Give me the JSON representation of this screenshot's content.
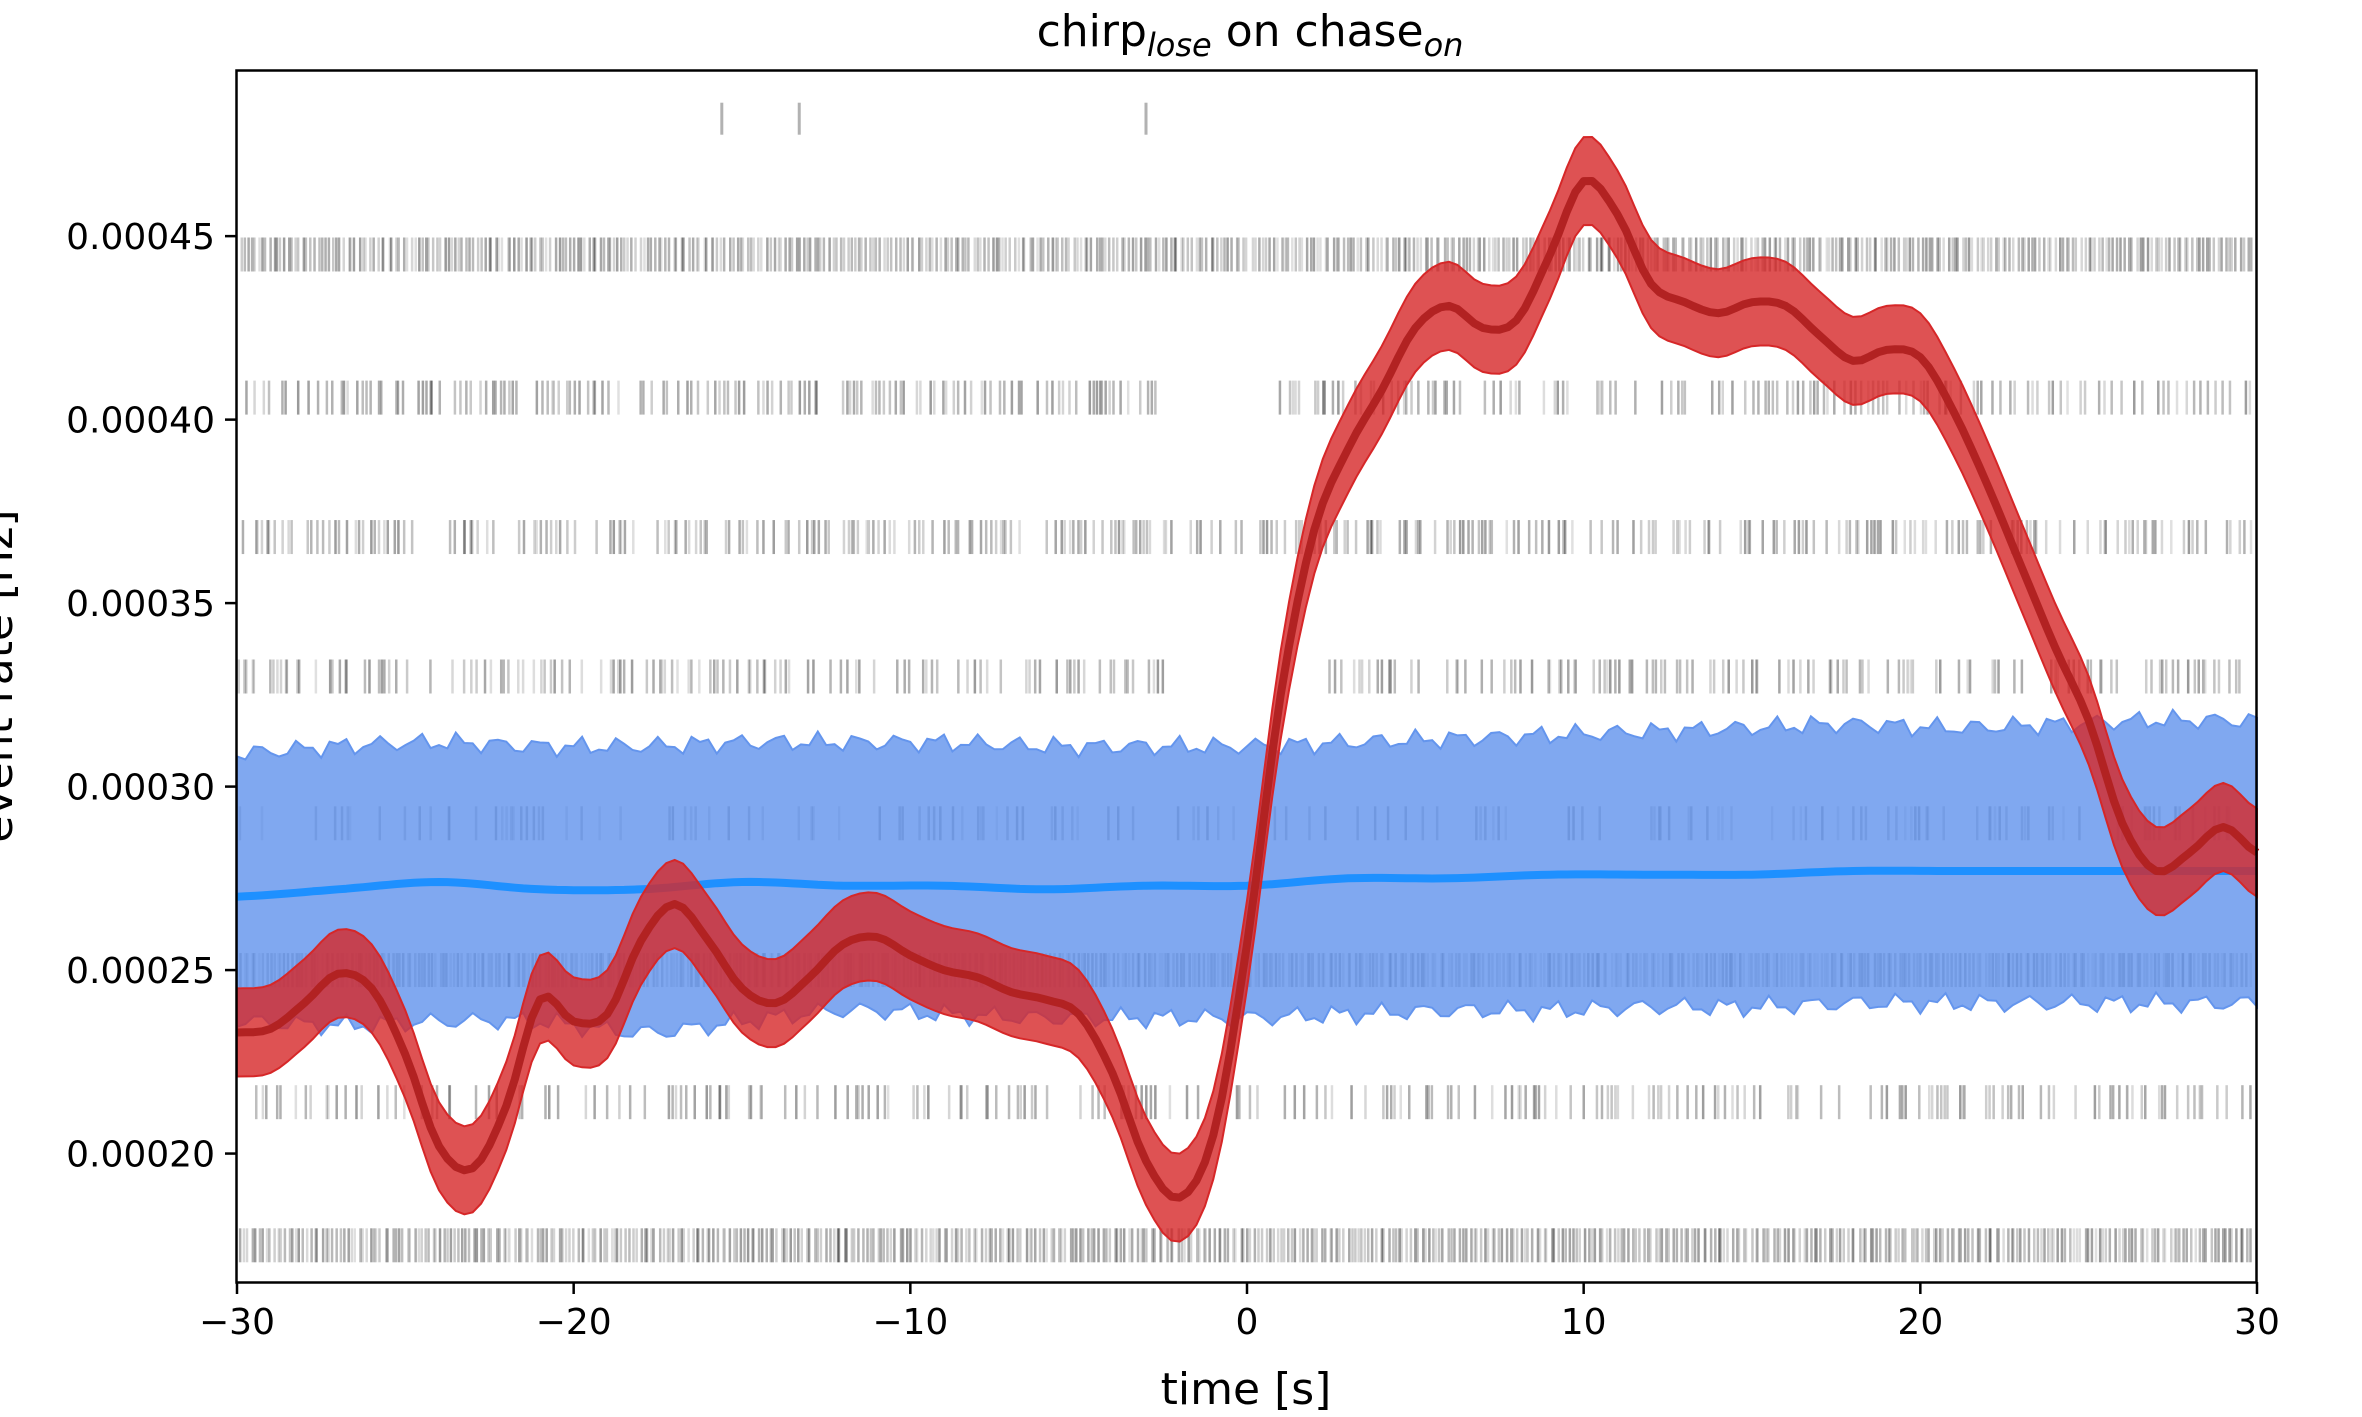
{
  "chart_data": {
    "type": "line",
    "title": {
      "base1": "chirp",
      "sub1": "lose",
      "mid": " on chase",
      "sub2": "on"
    },
    "xlabel": "time [s]",
    "ylabel": "event rate [Hz]",
    "xlim": [
      -30,
      30
    ],
    "ylim": [
      0.000165,
      0.000495
    ],
    "xticks": [
      -30,
      -20,
      -10,
      0,
      10,
      20,
      30
    ],
    "xtick_labels": [
      "−30",
      "−20",
      "−10",
      "0",
      "10",
      "20",
      "30"
    ],
    "yticks": [
      0.0002,
      0.00025,
      0.0003,
      0.00035,
      0.0004,
      0.00045
    ],
    "ytick_labels": [
      "0.00020",
      "0.00025",
      "0.00030",
      "0.00035",
      "0.00040",
      "0.00045"
    ],
    "grid": false,
    "legend": "none",
    "colors": {
      "signal_line": "#b22222",
      "signal_band": "#d62728",
      "shuffle_line": "#1e90ff",
      "shuffle_band": "#6495ed",
      "event_ticks": "#000000"
    },
    "series": [
      {
        "role": "observed rate (median) with confidence band",
        "x": [
          -30,
          -29,
          -28,
          -27,
          -26,
          -25,
          -24,
          -23,
          -22,
          -21,
          -20,
          -19,
          -18,
          -17,
          -16,
          -15,
          -14,
          -13,
          -12,
          -11,
          -10,
          -9,
          -8,
          -7,
          -6,
          -5,
          -4,
          -3,
          -2,
          -1,
          0,
          1,
          2,
          3,
          4,
          5,
          6,
          7,
          8,
          9,
          10,
          11,
          12,
          13,
          14,
          15,
          16,
          17,
          18,
          19,
          20,
          21,
          22,
          23,
          24,
          25,
          26,
          27,
          28,
          29,
          30
        ],
        "y": [
          0.000233,
          0.000234,
          0.000241,
          0.000249,
          0.000245,
          0.000227,
          0.000202,
          0.000196,
          0.000213,
          0.000242,
          0.000236,
          0.000238,
          0.000258,
          0.000268,
          0.000258,
          0.000245,
          0.000241,
          0.000248,
          0.000257,
          0.000259,
          0.000254,
          0.00025,
          0.000248,
          0.000244,
          0.000242,
          0.000238,
          0.000222,
          0.000198,
          0.000188,
          0.000205,
          0.000257,
          0.000325,
          0.00037,
          0.000392,
          0.000408,
          0.000425,
          0.000431,
          0.000425,
          0.000427,
          0.000445,
          0.000465,
          0.000456,
          0.000437,
          0.000432,
          0.000429,
          0.000432,
          0.000431,
          0.000423,
          0.000416,
          0.000419,
          0.000417,
          0.000402,
          0.000382,
          0.00036,
          0.000338,
          0.000318,
          0.00029,
          0.000277,
          0.000282,
          0.000289,
          0.000282
        ],
        "half_width": 1.2e-05
      },
      {
        "role": "shuffled control rate (median) with confidence band",
        "x": [
          -30,
          -27,
          -24,
          -21,
          -18,
          -15,
          -12,
          -9,
          -6,
          -3,
          0,
          3,
          6,
          9,
          12,
          15,
          18,
          21,
          24,
          27,
          30
        ],
        "y": [
          0.00027,
          0.000272,
          0.000274,
          0.000272,
          0.000272,
          0.000274,
          0.000273,
          0.000273,
          0.000272,
          0.000273,
          0.000273,
          0.000275,
          0.000275,
          0.000276,
          0.000276,
          0.000276,
          0.000277,
          0.000277,
          0.000277,
          0.000277,
          0.000277
        ],
        "lower": [
          0.000236,
          0.000235,
          0.000236,
          0.000236,
          0.000233,
          0.000236,
          0.000239,
          0.000238,
          0.000237,
          0.000237,
          0.000237,
          0.000238,
          0.000239,
          0.000239,
          0.00024,
          0.00024,
          0.000241,
          0.000241,
          0.000241,
          0.000241,
          0.000241
        ],
        "upper": [
          0.000309,
          0.000311,
          0.000312,
          0.000311,
          0.000311,
          0.000312,
          0.000312,
          0.000312,
          0.000311,
          0.000311,
          0.000311,
          0.000312,
          0.000313,
          0.000314,
          0.000315,
          0.000316,
          0.000317,
          0.000316,
          0.000317,
          0.000318,
          0.000318
        ]
      }
    ],
    "raster_rows": [
      {
        "y": 0.000482,
        "events": [
          -15.6,
          -13.3,
          -3.0
        ]
      },
      {
        "y": 0.000445,
        "density": 1.0,
        "gaps": []
      },
      {
        "y": 0.000406,
        "density": 0.55,
        "gaps": [
          [
            -2.6,
            0.9
          ]
        ]
      },
      {
        "y": 0.000368,
        "density": 0.55,
        "gaps": [
          [
            -24.8,
            -23.9
          ],
          [
            -19.3,
            -19.0
          ],
          [
            0.1,
            0.3
          ]
        ]
      },
      {
        "y": 0.00033,
        "density": 0.5,
        "gaps": [
          [
            -2.3,
            1.9
          ],
          [
            26.0,
            26.5
          ]
        ]
      },
      {
        "y": 0.00029,
        "density": 0.28,
        "gaps": []
      },
      {
        "y": 0.00025,
        "density": 1.0,
        "gaps": []
      },
      {
        "y": 0.000214,
        "density": 0.4,
        "gaps": []
      },
      {
        "y": 0.000175,
        "density": 1.0,
        "gaps": []
      }
    ]
  }
}
